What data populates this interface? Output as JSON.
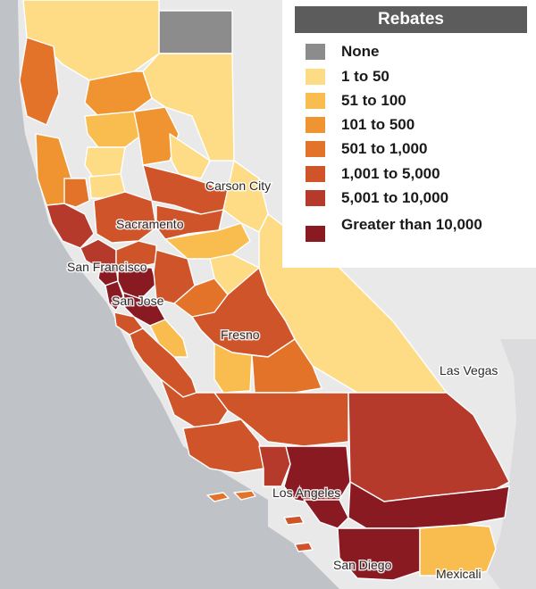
{
  "legend": {
    "title": "Rebates",
    "items": [
      {
        "label": "None",
        "color": "#8c8c8c"
      },
      {
        "label": "1 to 50",
        "color": "#fddc85"
      },
      {
        "label": "51 to 100",
        "color": "#f8bd4e"
      },
      {
        "label": "101 to 500",
        "color": "#ef9431"
      },
      {
        "label": "501 to 1,000",
        "color": "#e4732a"
      },
      {
        "label": "1,001 to 5,000",
        "color": "#d0542a"
      },
      {
        "label": "5,001 to 10,000",
        "color": "#b63a2b"
      },
      {
        "label": "Greater than 10,000",
        "color": "#8a1a22"
      }
    ]
  },
  "cities": {
    "carson_city": "Carson City",
    "sacramento": "Sacramento",
    "san_francisco": "San Francisco",
    "san_jose": "San Jose",
    "fresno": "Fresno",
    "las_vegas": "Las Vegas",
    "los_angeles": "Los Angeles",
    "san_diego": "San Diego",
    "mexicali": "Mexicali"
  },
  "colors": {
    "ocean": "#bfc3c8",
    "land": "#e9e9ea",
    "county_border": "#ffffff"
  }
}
